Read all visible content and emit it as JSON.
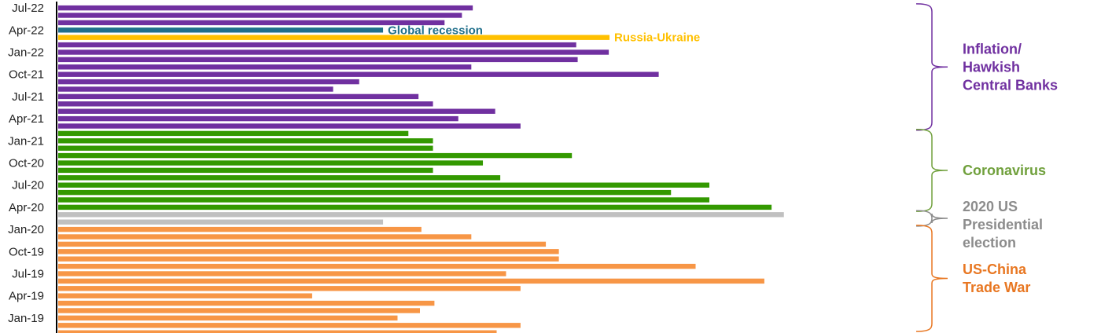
{
  "chart_data": {
    "type": "bar",
    "orientation": "horizontal",
    "title": "",
    "xlabel": "",
    "ylabel": "",
    "grid": false,
    "x_axis_labels_shown": false,
    "xlim": [
      0,
      100
    ],
    "y_tick_labels": [
      "Jul-22",
      "Apr-22",
      "Jan-22",
      "Oct-21",
      "Jul-21",
      "Apr-21",
      "Jan-21",
      "Oct-20",
      "Jul-20",
      "Apr-20",
      "Jan-20",
      "Oct-19",
      "Jul-19",
      "Apr-19",
      "Jan-19"
    ],
    "series": [
      {
        "name": "Inflation/ Hawkish Central Banks",
        "color": "#7030A0",
        "points": [
          {
            "category": "Jul-22",
            "value": 57.3
          },
          {
            "category": "Jun-22",
            "value": 55.8
          },
          {
            "category": "May-22",
            "value": 53.4
          },
          {
            "category": "Feb-22",
            "value": 71.6
          },
          {
            "category": "Jan-22",
            "value": 76.1
          },
          {
            "category": "Dec-21",
            "value": 71.8
          },
          {
            "category": "Nov-21",
            "value": 57.1
          },
          {
            "category": "Oct-21",
            "value": 83.0
          },
          {
            "category": "Sep-21",
            "value": 41.6
          },
          {
            "category": "Aug-21",
            "value": 38.0
          },
          {
            "category": "Jul-21",
            "value": 49.8
          },
          {
            "category": "Jun-21",
            "value": 51.8
          },
          {
            "category": "May-21",
            "value": 60.4
          },
          {
            "category": "Apr-21",
            "value": 55.3
          },
          {
            "category": "Mar-21",
            "value": 63.9
          }
        ]
      },
      {
        "name": "Global recession",
        "color": "#1F6F8B",
        "points": [
          {
            "category": "Apr-22",
            "value": 44.9
          }
        ]
      },
      {
        "name": "Russia-Ukraine",
        "color": "#FFC000",
        "points": [
          {
            "category": "Mar-22",
            "value": 76.2
          }
        ]
      },
      {
        "name": "Coronavirus",
        "color": "#339900",
        "points": [
          {
            "category": "Feb-21",
            "value": 48.4
          },
          {
            "category": "Jan-21",
            "value": 51.8
          },
          {
            "category": "Dec-20",
            "value": 51.8
          },
          {
            "category": "Nov-20",
            "value": 71.0
          },
          {
            "category": "Oct-20",
            "value": 58.7
          },
          {
            "category": "Sep-20",
            "value": 51.8
          },
          {
            "category": "Aug-20",
            "value": 61.1
          },
          {
            "category": "Jul-20",
            "value": 90.0
          },
          {
            "category": "Jun-20",
            "value": 84.7
          },
          {
            "category": "May-20",
            "value": 90.0
          },
          {
            "category": "Apr-20",
            "value": 98.6
          }
        ]
      },
      {
        "name": "2020 US Presidential election",
        "color": "#C0C0C0",
        "points": [
          {
            "category": "Mar-20",
            "value": 100.3
          },
          {
            "category": "Feb-20",
            "value": 44.9
          }
        ]
      },
      {
        "name": "US-China Trade War",
        "color": "#F79646",
        "points": [
          {
            "category": "Jan-20",
            "value": 50.2
          },
          {
            "category": "Dec-19",
            "value": 57.1
          },
          {
            "category": "Nov-19",
            "value": 67.4
          },
          {
            "category": "Oct-19",
            "value": 69.2
          },
          {
            "category": "Sep-19",
            "value": 69.2
          },
          {
            "category": "Aug-19",
            "value": 88.1
          },
          {
            "category": "Jul-19",
            "value": 61.9
          },
          {
            "category": "Jun-19",
            "value": 97.6
          },
          {
            "category": "May-19",
            "value": 63.9
          },
          {
            "category": "Apr-19",
            "value": 35.1
          },
          {
            "category": "Mar-19",
            "value": 52.0
          },
          {
            "category": "Feb-19",
            "value": 50.0
          },
          {
            "category": "Jan-19",
            "value": 46.9
          },
          {
            "category": "Dec-18",
            "value": 63.9
          },
          {
            "category": "Nov-18",
            "value": 60.6
          }
        ]
      }
    ],
    "annotations": [
      {
        "text": "Global recession",
        "category": "Apr-22",
        "color": "#1F6F8B"
      },
      {
        "text": "Russia-Ukraine",
        "category": "Mar-22",
        "color": "#FFC000"
      }
    ],
    "group_labels": [
      {
        "lines": [
          "Inflation/",
          "Hawkish",
          "Central Banks"
        ],
        "color": "#7030A0",
        "from": "Jul-22",
        "to": "Mar-21"
      },
      {
        "lines": [
          "Coronavirus"
        ],
        "color": "#70A03C",
        "from": "Feb-21",
        "to": "Apr-20"
      },
      {
        "lines": [
          "2020 US",
          "Presidential",
          "election"
        ],
        "color": "#8C8C8C",
        "from": "Mar-20",
        "to": "Feb-20"
      },
      {
        "lines": [
          "US-China",
          "Trade War"
        ],
        "color": "#E87722",
        "from": "Jan-20",
        "to": "Nov-18"
      }
    ]
  }
}
